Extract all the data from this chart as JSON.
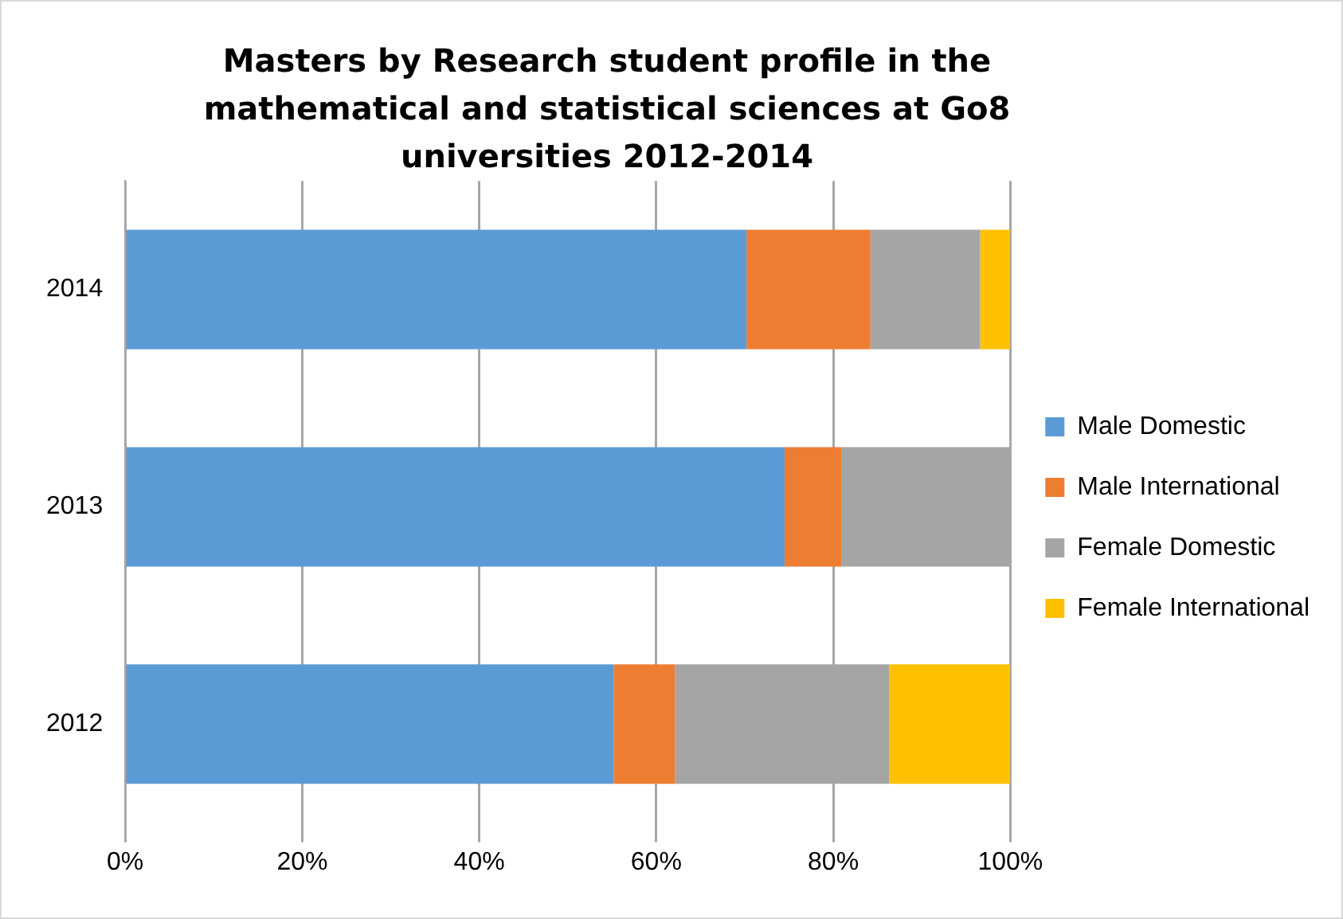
{
  "chart_data": {
    "type": "bar",
    "orientation": "horizontal",
    "stacked": true,
    "title": "Masters by Research student profile in the mathematical and statistical sciences at Go8 universities 2012-2014",
    "categories": [
      "2014",
      "2013",
      "2012"
    ],
    "series": [
      {
        "name": "Male Domestic",
        "color": "#5b9bd5",
        "values": [
          70.2,
          74.5,
          55.2
        ]
      },
      {
        "name": "Male International",
        "color": "#ed7d31",
        "values": [
          14.0,
          6.4,
          6.9
        ]
      },
      {
        "name": "Female Domestic",
        "color": "#a5a5a5",
        "values": [
          12.4,
          19.1,
          24.2
        ]
      },
      {
        "name": "Female International",
        "color": "#ffc000",
        "values": [
          3.4,
          0,
          13.7
        ]
      }
    ],
    "xlim": [
      0,
      100
    ],
    "xticks": [
      {
        "value": 0,
        "label": "0%"
      },
      {
        "value": 20,
        "label": "20%"
      },
      {
        "value": 40,
        "label": "40%"
      },
      {
        "value": 60,
        "label": "60%"
      },
      {
        "value": 80,
        "label": "80%"
      },
      {
        "value": 100,
        "label": "100%"
      }
    ],
    "grid": "x",
    "legend": "right"
  }
}
